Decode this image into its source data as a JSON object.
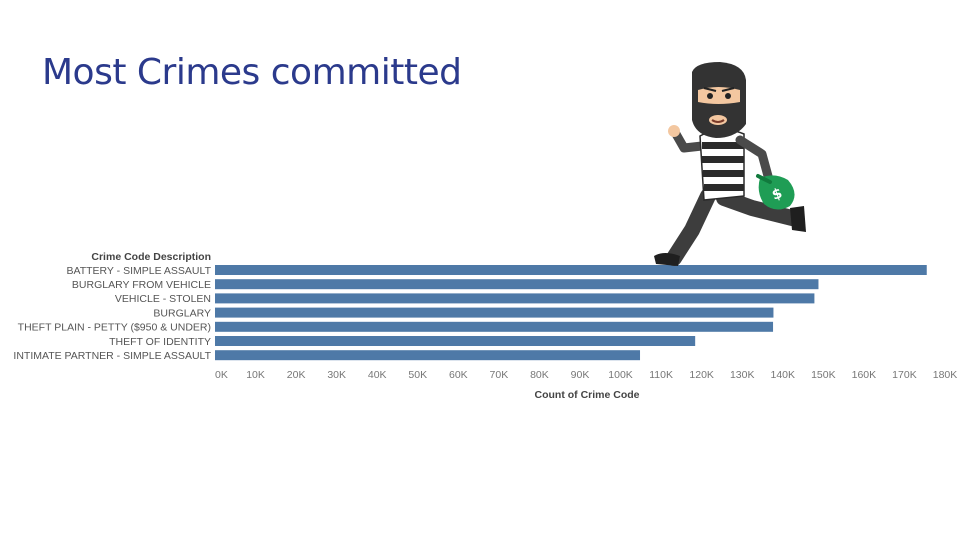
{
  "title": "Most Crimes committed",
  "chart_data": {
    "type": "bar",
    "orientation": "horizontal",
    "row_header": "Crime Code Description",
    "categories": [
      "BATTERY - SIMPLE ASSAULT",
      "BURGLARY FROM VEHICLE",
      "VEHICLE - STOLEN",
      "BURGLARY",
      "THEFT PLAIN - PETTY ($950 & UNDER)",
      "THEFT OF IDENTITY",
      "INTIMATE PARTNER - SIMPLE ASSAULT"
    ],
    "values": [
      175500,
      148800,
      147800,
      137700,
      137600,
      118400,
      104800
    ],
    "xlabel": "Count of Crime Code",
    "xlim": [
      0,
      180000
    ],
    "xticks": [
      "0K",
      "10K",
      "20K",
      "30K",
      "40K",
      "50K",
      "60K",
      "70K",
      "80K",
      "90K",
      "100K",
      "110K",
      "120K",
      "130K",
      "140K",
      "150K",
      "160K",
      "170K",
      "180K"
    ],
    "bar_color": "#4e79a7",
    "grid": false
  }
}
